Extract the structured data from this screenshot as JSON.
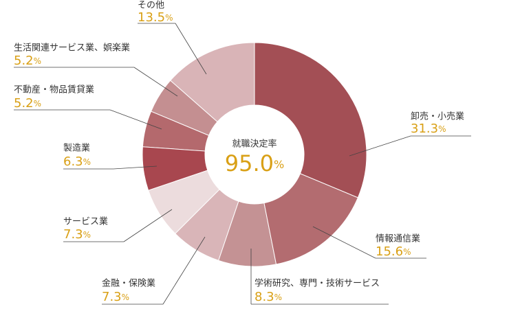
{
  "chart_data": {
    "type": "donut",
    "categories": [
      "卸売・小売業",
      "情報通信業",
      "学術研究、専門・技術サービス",
      "金融・保険業",
      "サービス業",
      "製造業",
      "不動産・物品賃貸業",
      "生活関連サービス業、娯楽業",
      "その他"
    ],
    "values": [
      31.3,
      15.6,
      8.3,
      7.3,
      7.3,
      6.3,
      5.2,
      5.2,
      13.5
    ],
    "value_labels": [
      "31.3%",
      "15.6%",
      "8.3%",
      "7.3%",
      "7.3%",
      "6.3%",
      "5.2%",
      "5.2%",
      "13.5%"
    ],
    "colors": [
      "#a34f55",
      "#b36c70",
      "#c49294",
      "#d9b5b8",
      "#ecdcdd",
      "#a8474f",
      "#b4696d",
      "#c48f91",
      "#d9b4b7"
    ],
    "center_label": "就職決定率",
    "center_value": 95.0,
    "center_value_label": "95.0%"
  }
}
